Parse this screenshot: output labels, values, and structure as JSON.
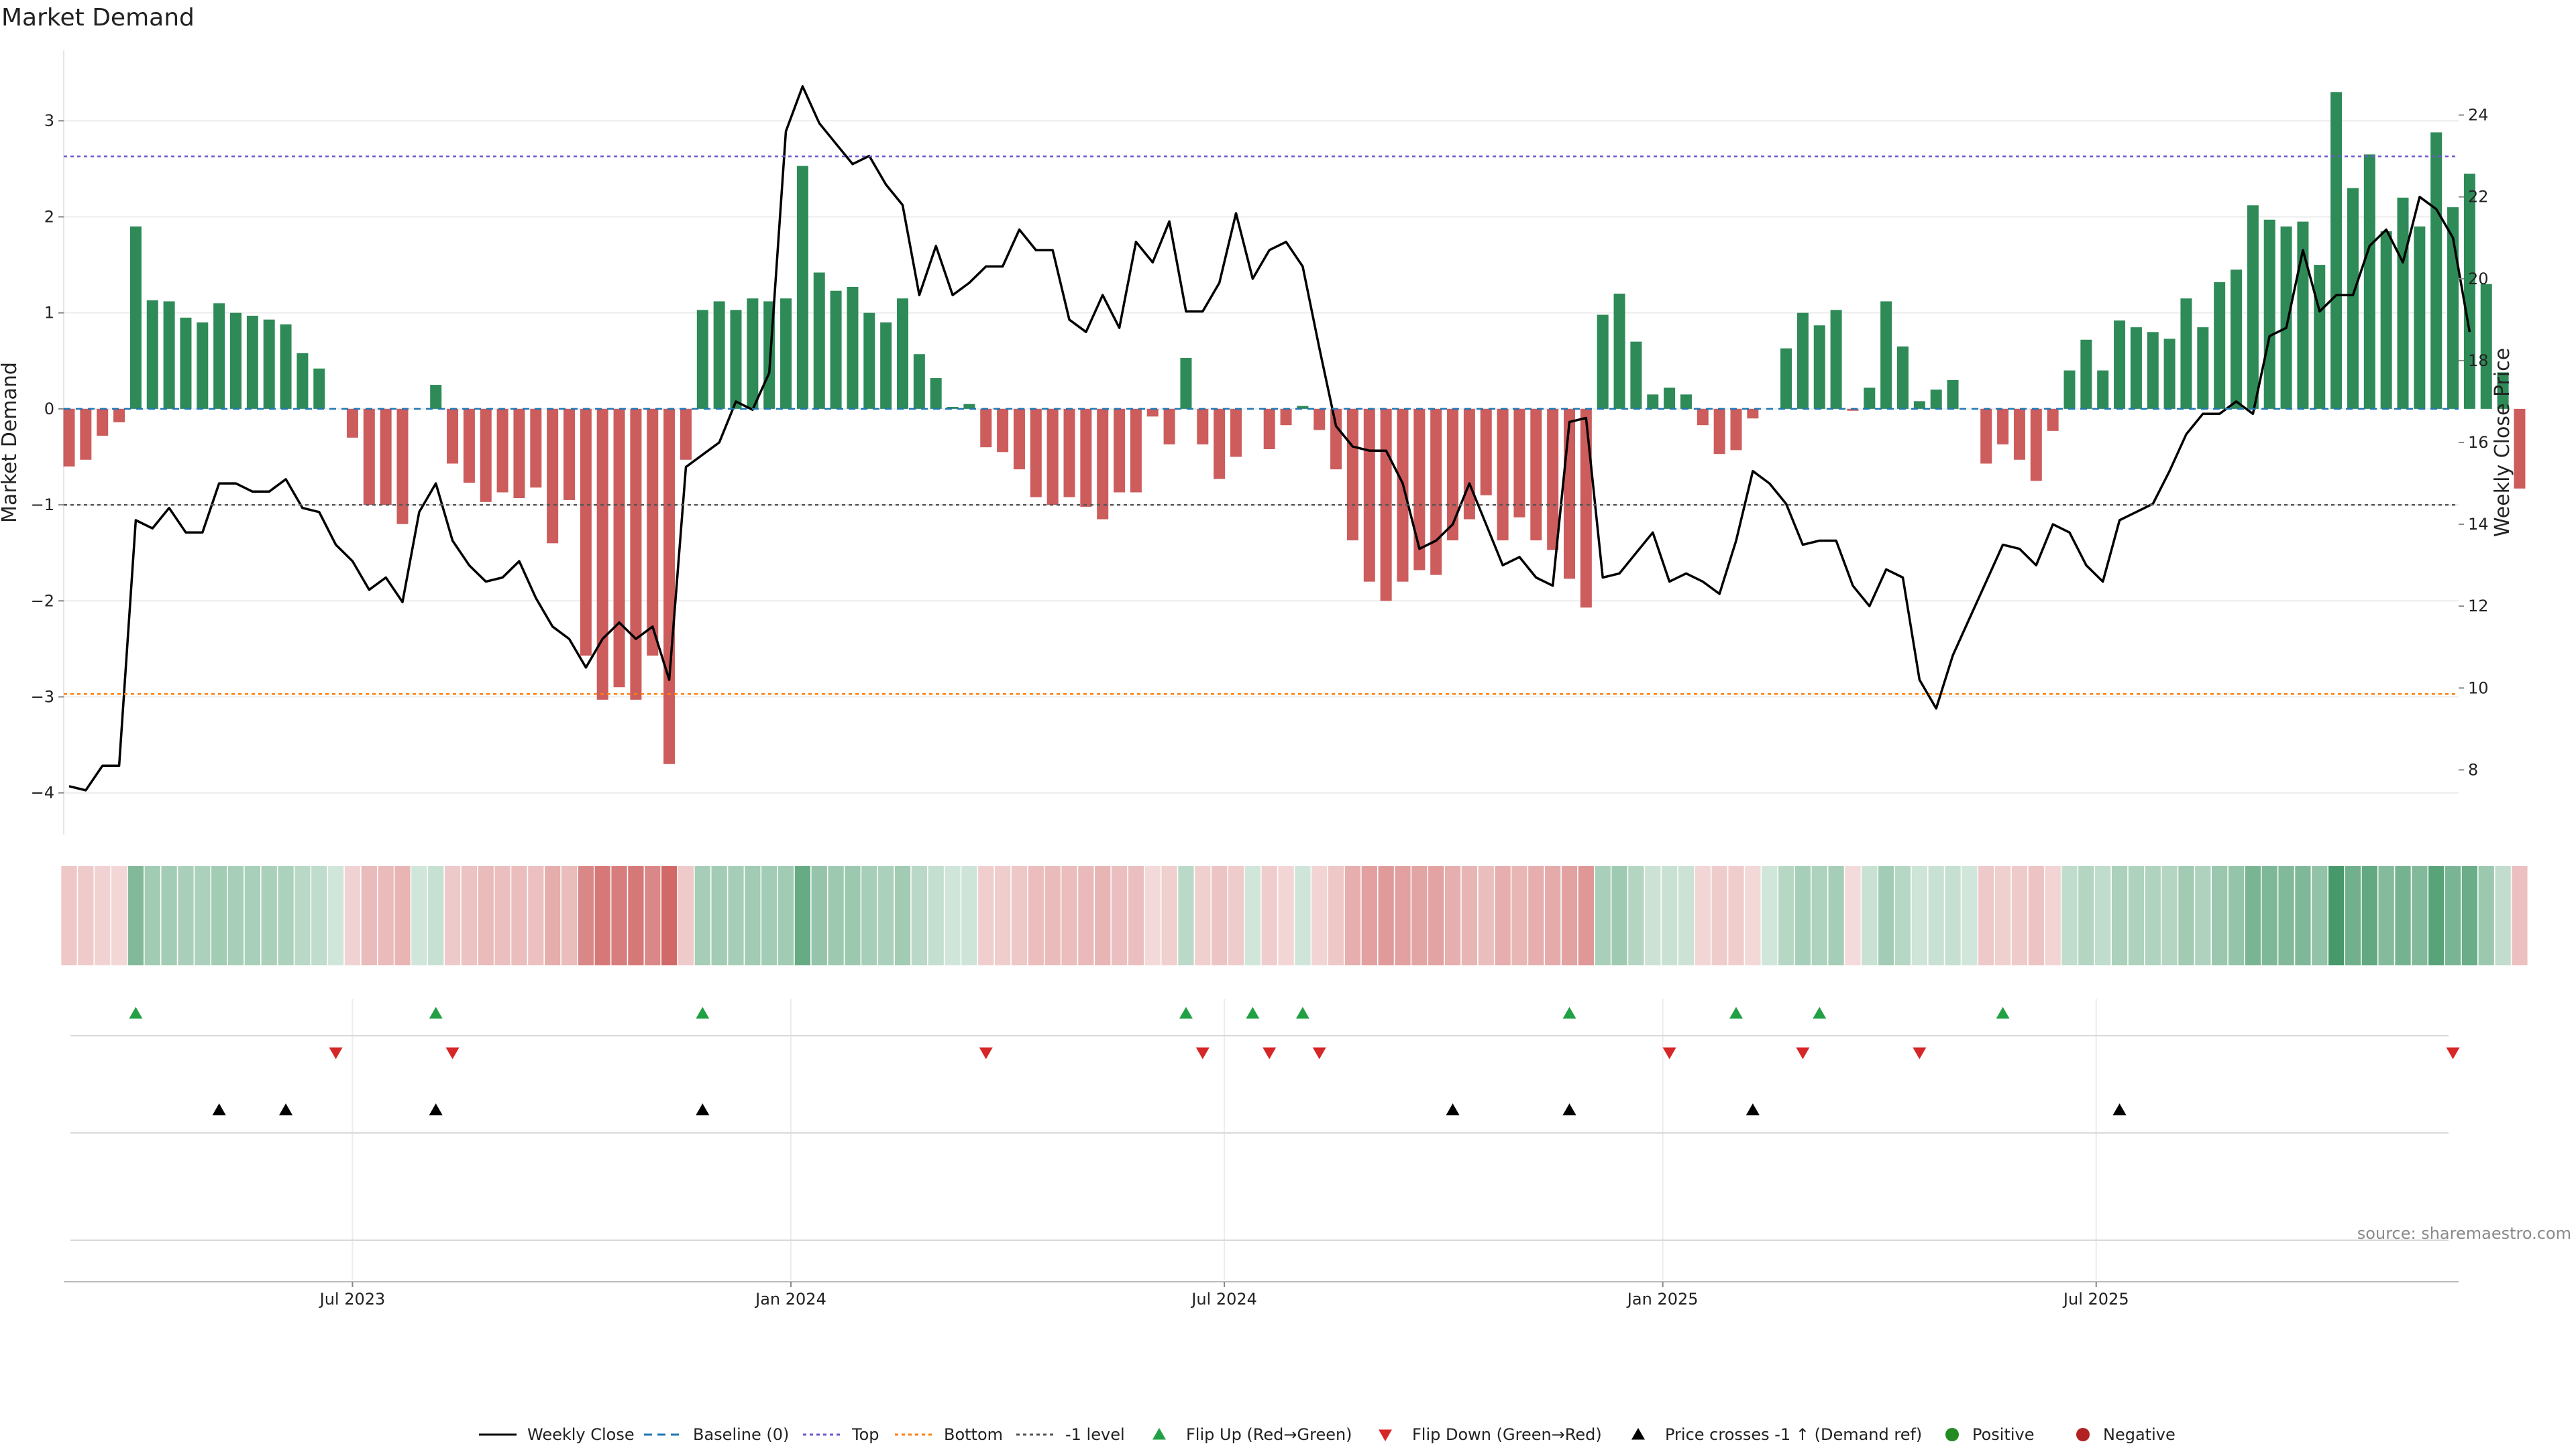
{
  "colors": {
    "positive_bar": "#2e8b57",
    "negative_bar": "#cd5c5c",
    "price_line": "#000000",
    "baseline": "#1f77b4",
    "top_line": "#6a5acd",
    "bottom_line": "#ff7f0e",
    "minus1_line": "#555555",
    "flip_up": "#22a044",
    "flip_down": "#d62728",
    "cross": "#000000",
    "positive_dot": "#228b22",
    "negative_dot": "#b22222",
    "source_text": "#8a8a8a"
  },
  "source_text": "source: sharemaestro.com",
  "chart_data": {
    "type": "bar",
    "title": "Market Demand",
    "ylabel": "Market Demand",
    "y2label": "Weekly Close Price",
    "ylim": [
      -4.4,
      3.7
    ],
    "y2lim": [
      6.5,
      25.5
    ],
    "yticks": [
      3,
      2,
      1,
      0,
      -1,
      -2,
      -3,
      -4
    ],
    "ytick_labels": [
      "3",
      "2",
      "1",
      "0",
      "−1",
      "−2",
      "−3",
      "−4"
    ],
    "y2ticks": [
      24,
      22,
      20,
      18,
      16,
      14,
      12,
      10,
      8
    ],
    "y2tick_labels": [
      "24",
      "22",
      "20",
      "18",
      "16",
      "14",
      "12",
      "10",
      "8"
    ],
    "x_dates": [
      "2023-03-06",
      "2023-03-13",
      "2023-03-20",
      "2023-03-27",
      "2023-04-03",
      "2023-04-10",
      "2023-04-17",
      "2023-04-24",
      "2023-05-01",
      "2023-05-08",
      "2023-05-15",
      "2023-05-22",
      "2023-05-29",
      "2023-06-05",
      "2023-06-12",
      "2023-06-19",
      "2023-06-26",
      "2023-07-03",
      "2023-07-10",
      "2023-07-17",
      "2023-07-24",
      "2023-07-31",
      "2023-08-07",
      "2023-08-14",
      "2023-08-21",
      "2023-08-28",
      "2023-09-04",
      "2023-09-11",
      "2023-09-18",
      "2023-09-25",
      "2023-10-02",
      "2023-10-09",
      "2023-10-16",
      "2023-10-23",
      "2023-10-30",
      "2023-11-06",
      "2023-11-13",
      "2023-11-20",
      "2023-11-27",
      "2023-12-04",
      "2023-12-11",
      "2023-12-18",
      "2023-12-25",
      "2024-01-01",
      "2024-01-08",
      "2024-01-15",
      "2024-01-22",
      "2024-01-29",
      "2024-02-05",
      "2024-02-12",
      "2024-02-19",
      "2024-02-26",
      "2024-03-04",
      "2024-03-11",
      "2024-03-18",
      "2024-03-25",
      "2024-04-01",
      "2024-04-08",
      "2024-04-15",
      "2024-04-22",
      "2024-04-29",
      "2024-05-06",
      "2024-05-13",
      "2024-05-20",
      "2024-05-27",
      "2024-06-03",
      "2024-06-10",
      "2024-06-17",
      "2024-06-24",
      "2024-07-01",
      "2024-07-08",
      "2024-07-15",
      "2024-07-22",
      "2024-07-29",
      "2024-08-05",
      "2024-08-12",
      "2024-08-19",
      "2024-08-26",
      "2024-09-02",
      "2024-09-09",
      "2024-09-16",
      "2024-09-23",
      "2024-09-30",
      "2024-10-07",
      "2024-10-14",
      "2024-10-21",
      "2024-10-28",
      "2024-11-04",
      "2024-11-11",
      "2024-11-18",
      "2024-11-25",
      "2024-12-02",
      "2024-12-09",
      "2024-12-16",
      "2024-12-23",
      "2024-12-30",
      "2025-01-06",
      "2025-01-13",
      "2025-01-20",
      "2025-01-27",
      "2025-02-03",
      "2025-02-10",
      "2025-02-17",
      "2025-02-24",
      "2025-03-03",
      "2025-03-10",
      "2025-03-17",
      "2025-03-24",
      "2025-03-31",
      "2025-04-07",
      "2025-04-14",
      "2025-04-21",
      "2025-04-28",
      "2025-05-05",
      "2025-05-12",
      "2025-05-19",
      "2025-05-26",
      "2025-06-02",
      "2025-06-09",
      "2025-06-16",
      "2025-06-23",
      "2025-06-30",
      "2025-07-07",
      "2025-07-14",
      "2025-07-21",
      "2025-07-28",
      "2025-08-04",
      "2025-08-11",
      "2025-08-18",
      "2025-08-25",
      "2025-09-01",
      "2025-09-08",
      "2025-09-15",
      "2025-09-22",
      "2025-09-29",
      "2025-10-06",
      "2025-10-13",
      "2025-10-20",
      "2025-10-27",
      "2025-11-03",
      "2025-11-10",
      "2025-11-17",
      "2025-11-24"
    ],
    "demand": [
      -0.6,
      -0.53,
      -0.28,
      -0.14,
      1.9,
      1.13,
      1.12,
      0.95,
      0.9,
      1.1,
      1.0,
      0.97,
      0.93,
      0.88,
      0.58,
      0.42,
      0.0,
      -0.3,
      -1.0,
      -1.0,
      -1.2,
      0.0,
      0.25,
      -0.57,
      -0.77,
      -0.97,
      -0.87,
      -0.93,
      -0.82,
      -1.4,
      -0.95,
      -2.57,
      -3.03,
      -2.9,
      -3.03,
      -2.57,
      -3.7,
      -0.53,
      1.03,
      1.12,
      1.03,
      1.15,
      1.12,
      1.15,
      2.53,
      1.42,
      1.23,
      1.27,
      1.0,
      0.9,
      1.15,
      0.57,
      0.32,
      0.02,
      0.05,
      -0.4,
      -0.45,
      -0.63,
      -0.92,
      -1.0,
      -0.92,
      -1.02,
      -1.15,
      -0.87,
      -0.87,
      -0.08,
      -0.37,
      0.53,
      -0.37,
      -0.73,
      -0.5,
      0.0,
      -0.42,
      -0.17,
      0.03,
      -0.22,
      -0.63,
      -1.37,
      -1.8,
      -2.0,
      -1.8,
      -1.68,
      -1.73,
      -1.37,
      -1.15,
      -0.9,
      -1.37,
      -1.13,
      -1.37,
      -1.47,
      -1.77,
      -2.07,
      0.98,
      1.2,
      0.7,
      0.15,
      0.22,
      0.15,
      -0.17,
      -0.47,
      -0.43,
      -0.1,
      0.0,
      0.63,
      1.0,
      0.87,
      1.03,
      -0.02,
      0.22,
      1.12,
      0.65,
      0.08,
      0.2,
      0.3,
      0.0,
      -0.57,
      -0.37,
      -0.53,
      -0.75,
      -0.23,
      0.4,
      0.72,
      0.4,
      0.92,
      0.85,
      0.8,
      0.73,
      1.15,
      0.85,
      1.32,
      1.45,
      2.12,
      1.97,
      1.9,
      1.95,
      1.5,
      3.3,
      2.3,
      2.65,
      1.85,
      2.2,
      1.9,
      2.88,
      2.1,
      2.45,
      1.3,
      0.38,
      -0.83
    ],
    "price": [
      7.6,
      7.5,
      8.1,
      8.1,
      14.1,
      13.9,
      14.4,
      13.8,
      13.8,
      15.0,
      15.0,
      14.8,
      14.8,
      15.1,
      14.4,
      14.3,
      13.5,
      13.1,
      12.4,
      12.7,
      12.1,
      14.3,
      15.0,
      13.6,
      13.0,
      12.6,
      12.7,
      13.1,
      12.2,
      11.5,
      11.2,
      10.5,
      11.2,
      11.6,
      11.2,
      11.5,
      10.2,
      15.4,
      15.7,
      16.0,
      17.0,
      16.8,
      17.7,
      23.6,
      24.7,
      23.8,
      23.3,
      22.8,
      23.0,
      22.3,
      21.8,
      19.6,
      20.8,
      19.6,
      19.9,
      20.3,
      20.3,
      21.2,
      20.7,
      20.7,
      19.0,
      18.7,
      19.6,
      18.8,
      20.9,
      20.4,
      21.4,
      19.2,
      19.2,
      19.9,
      21.6,
      20.0,
      20.7,
      20.9,
      20.3,
      18.3,
      16.4,
      15.9,
      15.8,
      15.8,
      15.0,
      13.4,
      13.6,
      14.0,
      15.0,
      14.0,
      13.0,
      13.2,
      12.7,
      12.5,
      16.5,
      16.6,
      12.7,
      12.8,
      13.3,
      13.8,
      12.6,
      12.8,
      12.6,
      12.3,
      13.6,
      15.3,
      15.0,
      14.5,
      13.5,
      13.6,
      13.6,
      12.5,
      12.0,
      12.9,
      12.7,
      10.2,
      9.5,
      10.8,
      11.7,
      12.6,
      13.5,
      13.4,
      13.0,
      14.0,
      13.8,
      13.0,
      12.6,
      14.1,
      14.3,
      14.5,
      15.3,
      16.2,
      16.7,
      16.7,
      17.0,
      16.7,
      18.6,
      18.8,
      20.7,
      19.2,
      19.6,
      19.6,
      20.8,
      21.2,
      20.4,
      22.0,
      21.7,
      21.0,
      18.7
    ],
    "flip_up_weeks": [
      4,
      22,
      38,
      67,
      71,
      74,
      90,
      100,
      105,
      116
    ],
    "flip_down_weeks": [
      16,
      23,
      55,
      68,
      72,
      75,
      96,
      104,
      111,
      143
    ],
    "price_cross_weeks": [
      9,
      13,
      22,
      38,
      83,
      90,
      101,
      123
    ],
    "x_tick_labels": [
      "Jul 2023",
      "Jan 2024",
      "Jul 2024",
      "Jan 2025",
      "Jul 2025"
    ],
    "x_tick_weeks": [
      17,
      43.3,
      69.3,
      95.6,
      121.6
    ],
    "levels": {
      "baseline": 0,
      "top": 2.63,
      "bottom": -2.97,
      "minus1": -1
    },
    "legend": [
      "Weekly Close",
      "Baseline (0)",
      "Top",
      "Bottom",
      "-1 level",
      "Flip Up (Red→Green)",
      "Flip Down (Green→Red)",
      "Price crosses -1 ↑ (Demand ref)",
      "Positive",
      "Negative"
    ],
    "legend_placement": "bottom-center"
  }
}
